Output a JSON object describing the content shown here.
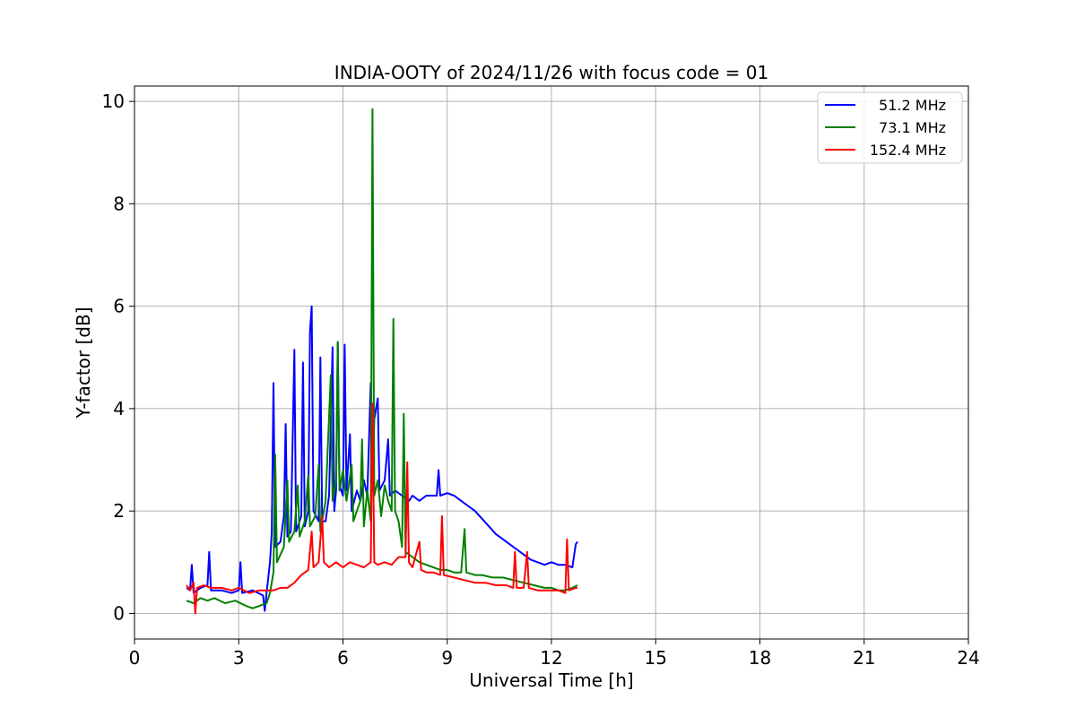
{
  "chart_data": {
    "type": "line",
    "title": "INDIA-OOTY of 2024/11/26 with focus code = 01",
    "xlabel": "Universal Time [h]",
    "ylabel": "Y-factor [dB]",
    "xlim": [
      0,
      24
    ],
    "ylim": [
      -0.5,
      10.3
    ],
    "xticks": [
      0,
      3,
      6,
      9,
      12,
      15,
      18,
      21,
      24
    ],
    "xtick_labels": [
      "0",
      "3",
      "6",
      "9",
      "12",
      "15",
      "18",
      "21",
      "24"
    ],
    "yticks": [
      0,
      2,
      4,
      6,
      8,
      10
    ],
    "ytick_labels": [
      "0",
      "2",
      "4",
      "6",
      "8",
      "10"
    ],
    "grid": true,
    "legend_position": "top-right",
    "series": [
      {
        "name": "51.2 MHz",
        "color": "#0000ff",
        "points": [
          [
            1.5,
            0.5
          ],
          [
            1.6,
            0.45
          ],
          [
            1.65,
            0.95
          ],
          [
            1.7,
            0.4
          ],
          [
            1.9,
            0.5
          ],
          [
            2.1,
            0.55
          ],
          [
            2.15,
            1.2
          ],
          [
            2.2,
            0.45
          ],
          [
            2.5,
            0.45
          ],
          [
            2.8,
            0.4
          ],
          [
            3.0,
            0.45
          ],
          [
            3.05,
            1.0
          ],
          [
            3.1,
            0.4
          ],
          [
            3.4,
            0.45
          ],
          [
            3.7,
            0.35
          ],
          [
            3.75,
            0.05
          ],
          [
            3.8,
            0.4
          ],
          [
            3.9,
            1.0
          ],
          [
            3.95,
            1.6
          ],
          [
            4.0,
            4.5
          ],
          [
            4.05,
            1.3
          ],
          [
            4.2,
            1.4
          ],
          [
            4.3,
            1.9
          ],
          [
            4.35,
            3.7
          ],
          [
            4.4,
            1.5
          ],
          [
            4.5,
            1.6
          ],
          [
            4.6,
            5.15
          ],
          [
            4.65,
            1.6
          ],
          [
            4.8,
            1.9
          ],
          [
            4.85,
            4.9
          ],
          [
            4.9,
            1.7
          ],
          [
            5.0,
            2.0
          ],
          [
            5.05,
            5.5
          ],
          [
            5.1,
            6.0
          ],
          [
            5.15,
            2.0
          ],
          [
            5.3,
            1.8
          ],
          [
            5.35,
            5.0
          ],
          [
            5.4,
            1.8
          ],
          [
            5.5,
            1.8
          ],
          [
            5.6,
            2.3
          ],
          [
            5.7,
            5.2
          ],
          [
            5.75,
            2.0
          ],
          [
            5.8,
            2.4
          ],
          [
            5.85,
            5.3
          ],
          [
            5.9,
            2.5
          ],
          [
            6.0,
            2.3
          ],
          [
            6.05,
            5.25
          ],
          [
            6.1,
            2.4
          ],
          [
            6.2,
            3.5
          ],
          [
            6.25,
            2.0
          ],
          [
            6.4,
            2.4
          ],
          [
            6.5,
            2.2
          ],
          [
            6.6,
            2.6
          ],
          [
            6.7,
            2.3
          ],
          [
            6.8,
            4.5
          ],
          [
            6.85,
            2.4
          ],
          [
            6.9,
            3.8
          ],
          [
            7.0,
            4.2
          ],
          [
            7.05,
            2.4
          ],
          [
            7.2,
            2.6
          ],
          [
            7.3,
            3.4
          ],
          [
            7.35,
            2.3
          ],
          [
            7.5,
            2.4
          ],
          [
            7.7,
            2.3
          ],
          [
            7.9,
            2.2
          ],
          [
            8.0,
            2.3
          ],
          [
            8.2,
            2.2
          ],
          [
            8.4,
            2.3
          ],
          [
            8.6,
            2.3
          ],
          [
            8.7,
            2.3
          ],
          [
            8.75,
            2.8
          ],
          [
            8.8,
            2.3
          ],
          [
            9.0,
            2.35
          ],
          [
            9.2,
            2.3
          ],
          [
            9.4,
            2.2
          ],
          [
            9.6,
            2.1
          ],
          [
            9.8,
            2.0
          ],
          [
            10.0,
            1.85
          ],
          [
            10.2,
            1.7
          ],
          [
            10.4,
            1.55
          ],
          [
            10.6,
            1.45
          ],
          [
            10.8,
            1.35
          ],
          [
            11.0,
            1.25
          ],
          [
            11.2,
            1.15
          ],
          [
            11.4,
            1.05
          ],
          [
            11.6,
            1.0
          ],
          [
            11.8,
            0.95
          ],
          [
            12.0,
            1.0
          ],
          [
            12.2,
            0.95
          ],
          [
            12.4,
            0.95
          ],
          [
            12.6,
            0.9
          ],
          [
            12.7,
            1.35
          ],
          [
            12.75,
            1.4
          ]
        ]
      },
      {
        "name": "73.1 MHz",
        "color": "#008000",
        "points": [
          [
            1.5,
            0.25
          ],
          [
            1.7,
            0.2
          ],
          [
            1.9,
            0.3
          ],
          [
            2.1,
            0.25
          ],
          [
            2.3,
            0.3
          ],
          [
            2.6,
            0.2
          ],
          [
            2.9,
            0.25
          ],
          [
            3.2,
            0.15
          ],
          [
            3.4,
            0.1
          ],
          [
            3.6,
            0.15
          ],
          [
            3.8,
            0.2
          ],
          [
            3.9,
            0.4
          ],
          [
            4.0,
            0.8
          ],
          [
            4.05,
            3.1
          ],
          [
            4.1,
            1.0
          ],
          [
            4.3,
            1.3
          ],
          [
            4.4,
            2.6
          ],
          [
            4.45,
            1.4
          ],
          [
            4.6,
            1.6
          ],
          [
            4.7,
            2.5
          ],
          [
            4.75,
            1.5
          ],
          [
            4.9,
            1.8
          ],
          [
            5.0,
            2.7
          ],
          [
            5.05,
            1.7
          ],
          [
            5.2,
            1.9
          ],
          [
            5.3,
            2.9
          ],
          [
            5.35,
            1.6
          ],
          [
            5.5,
            2.2
          ],
          [
            5.65,
            4.65
          ],
          [
            5.7,
            2.2
          ],
          [
            5.8,
            2.6
          ],
          [
            5.85,
            5.3
          ],
          [
            5.9,
            2.4
          ],
          [
            6.0,
            2.8
          ],
          [
            6.1,
            2.2
          ],
          [
            6.25,
            2.9
          ],
          [
            6.3,
            1.8
          ],
          [
            6.5,
            2.2
          ],
          [
            6.55,
            3.4
          ],
          [
            6.6,
            1.7
          ],
          [
            6.7,
            2.4
          ],
          [
            6.8,
            1.8
          ],
          [
            6.85,
            9.85
          ],
          [
            6.9,
            2.3
          ],
          [
            7.0,
            2.6
          ],
          [
            7.1,
            1.9
          ],
          [
            7.2,
            2.5
          ],
          [
            7.3,
            2.2
          ],
          [
            7.4,
            2.0
          ],
          [
            7.45,
            5.75
          ],
          [
            7.5,
            2.0
          ],
          [
            7.6,
            1.8
          ],
          [
            7.7,
            1.3
          ],
          [
            7.75,
            3.9
          ],
          [
            7.8,
            1.2
          ],
          [
            8.0,
            1.1
          ],
          [
            8.2,
            1.0
          ],
          [
            8.4,
            0.95
          ],
          [
            8.6,
            0.9
          ],
          [
            8.8,
            0.85
          ],
          [
            9.0,
            0.85
          ],
          [
            9.2,
            0.8
          ],
          [
            9.4,
            0.8
          ],
          [
            9.5,
            1.65
          ],
          [
            9.55,
            0.8
          ],
          [
            9.8,
            0.75
          ],
          [
            10.0,
            0.75
          ],
          [
            10.3,
            0.7
          ],
          [
            10.6,
            0.7
          ],
          [
            10.9,
            0.65
          ],
          [
            11.2,
            0.6
          ],
          [
            11.5,
            0.55
          ],
          [
            11.8,
            0.5
          ],
          [
            12.0,
            0.5
          ],
          [
            12.2,
            0.45
          ],
          [
            12.4,
            0.45
          ],
          [
            12.6,
            0.5
          ],
          [
            12.75,
            0.55
          ]
        ]
      },
      {
        "name": "152.4 MHz",
        "color": "#ff0000",
        "points": [
          [
            1.5,
            0.55
          ],
          [
            1.6,
            0.45
          ],
          [
            1.7,
            0.6
          ],
          [
            1.75,
            0.0
          ],
          [
            1.8,
            0.5
          ],
          [
            2.0,
            0.55
          ],
          [
            2.2,
            0.5
          ],
          [
            2.5,
            0.5
          ],
          [
            2.8,
            0.45
          ],
          [
            3.0,
            0.5
          ],
          [
            3.3,
            0.4
          ],
          [
            3.6,
            0.45
          ],
          [
            3.8,
            0.45
          ],
          [
            4.0,
            0.45
          ],
          [
            4.2,
            0.5
          ],
          [
            4.4,
            0.5
          ],
          [
            4.6,
            0.6
          ],
          [
            4.8,
            0.75
          ],
          [
            5.0,
            0.85
          ],
          [
            5.1,
            1.6
          ],
          [
            5.15,
            0.9
          ],
          [
            5.3,
            1.0
          ],
          [
            5.4,
            1.9
          ],
          [
            5.45,
            1.0
          ],
          [
            5.6,
            0.9
          ],
          [
            5.8,
            1.0
          ],
          [
            6.0,
            0.9
          ],
          [
            6.2,
            1.0
          ],
          [
            6.4,
            0.95
          ],
          [
            6.6,
            0.9
          ],
          [
            6.8,
            1.0
          ],
          [
            6.85,
            4.1
          ],
          [
            6.9,
            1.0
          ],
          [
            7.0,
            0.95
          ],
          [
            7.2,
            1.0
          ],
          [
            7.4,
            0.95
          ],
          [
            7.6,
            1.1
          ],
          [
            7.8,
            1.1
          ],
          [
            7.85,
            2.95
          ],
          [
            7.9,
            1.0
          ],
          [
            8.0,
            0.9
          ],
          [
            8.2,
            1.4
          ],
          [
            8.25,
            0.85
          ],
          [
            8.4,
            0.8
          ],
          [
            8.6,
            0.8
          ],
          [
            8.8,
            0.75
          ],
          [
            8.85,
            1.9
          ],
          [
            8.9,
            0.75
          ],
          [
            9.2,
            0.7
          ],
          [
            9.5,
            0.65
          ],
          [
            9.8,
            0.6
          ],
          [
            10.1,
            0.6
          ],
          [
            10.4,
            0.55
          ],
          [
            10.7,
            0.55
          ],
          [
            10.9,
            0.5
          ],
          [
            10.95,
            1.2
          ],
          [
            11.0,
            0.5
          ],
          [
            11.2,
            0.5
          ],
          [
            11.3,
            1.2
          ],
          [
            11.35,
            0.5
          ],
          [
            11.6,
            0.45
          ],
          [
            11.9,
            0.45
          ],
          [
            12.2,
            0.45
          ],
          [
            12.4,
            0.4
          ],
          [
            12.45,
            1.45
          ],
          [
            12.5,
            0.45
          ],
          [
            12.7,
            0.5
          ],
          [
            12.75,
            0.5
          ]
        ]
      }
    ]
  }
}
